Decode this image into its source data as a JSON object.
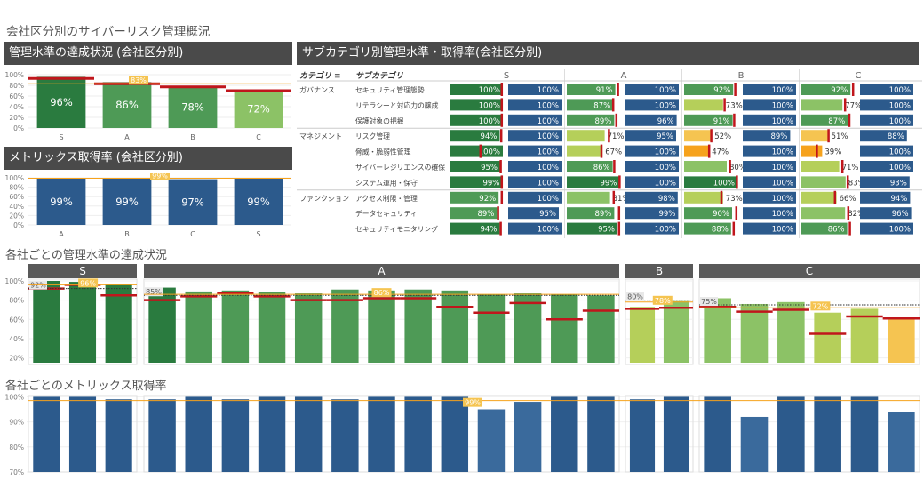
{
  "page_title": "会社区分別のサイバーリスク管理概況",
  "panels": {
    "achievement_title": "管理水準の達成状況 (会社区分別)",
    "metrics_title": "メトリックス取得率 (会社区分別)",
    "matrix_title": "サブカテゴリ別管理水準・取得率(会社区分別)",
    "company_achievement_title": "各社ごとの管理水準の達成状況",
    "company_metrics_title": "各社ごとのメトリックス取得率"
  },
  "colors": {
    "green_dark": "#2a7b3f",
    "green_mid": "#4e9a56",
    "green_light": "#8cc266",
    "yellow_green": "#b5cf5a",
    "blue": "#2c5a8c",
    "yellow": "#f5c451",
    "orange": "#f6a21c",
    "red": "#c0161c"
  },
  "chart_data": [
    {
      "id": "division_achievement",
      "type": "bar",
      "categories": [
        "S",
        "A",
        "B",
        "C"
      ],
      "values": [
        96,
        86,
        78,
        72
      ],
      "targets": [
        93,
        83,
        77,
        70
      ],
      "reference_line": 83,
      "reference_label": "83%",
      "ylim": [
        0,
        100
      ],
      "y_ticks": [
        "0%",
        "20%",
        "40%",
        "60%",
        "80%",
        "100%"
      ]
    },
    {
      "id": "division_metrics",
      "type": "bar",
      "categories": [
        "A",
        "B",
        "C",
        "S"
      ],
      "values": [
        99,
        99,
        97,
        99
      ],
      "reference_line": 99,
      "reference_label": "99%",
      "ylim": [
        0,
        100
      ],
      "y_ticks": [
        "0%",
        "20%",
        "40%",
        "60%",
        "80%",
        "100%"
      ]
    },
    {
      "id": "subcategory_matrix",
      "type": "table",
      "column_header_category": "カテゴリ",
      "column_header_subcategory": "サブカテゴリ",
      "sort_icon": "sort-icon",
      "divisions": [
        "S",
        "A",
        "B",
        "C"
      ],
      "groups": [
        {
          "category": "ガバナンス",
          "rows": [
            {
              "sub": "セキュリティ管理態勢",
              "ach": [
                100,
                91,
                92,
                92
              ],
              "tgt": [
                98,
                96,
                96,
                97
              ],
              "met": [
                100,
                100,
                100,
                100
              ]
            },
            {
              "sub": "リテラシーと対応力の醸成",
              "ach": [
                100,
                87,
                73,
                77
              ],
              "tgt": [
                98,
                87,
                76,
                82
              ],
              "met": [
                100,
                100,
                100,
                100
              ]
            },
            {
              "sub": "保護対象の把握",
              "ach": [
                100,
                89,
                91,
                87
              ],
              "tgt": [
                98,
                93,
                94,
                90
              ],
              "met": [
                100,
                96,
                100,
                100
              ]
            }
          ]
        },
        {
          "category": "マネジメント",
          "rows": [
            {
              "sub": "リスク管理",
              "ach": [
                94,
                71,
                52,
                51
              ],
              "tgt": [
                97,
                79,
                51,
                51
              ],
              "met": [
                100,
                95,
                89,
                88
              ]
            },
            {
              "sub": "脅威・脆弱性管理",
              "ach": [
                100,
                67,
                47,
                39
              ],
              "tgt": [
                58,
                65,
                47,
                29
              ],
              "met": [
                100,
                100,
                100,
                100
              ]
            },
            {
              "sub": "サイバーレジリエンスの確保",
              "ach": [
                95,
                86,
                80,
                71
              ],
              "tgt": [
                96,
                89,
                86,
                77
              ],
              "met": [
                100,
                100,
                100,
                100
              ]
            },
            {
              "sub": "システム運用・保守",
              "ach": [
                99,
                99,
                100,
                83
              ],
              "tgt": [
                98,
                99,
                99,
                87
              ],
              "met": [
                100,
                100,
                100,
                93
              ]
            }
          ]
        },
        {
          "category": "ファンクション",
          "rows": [
            {
              "sub": "アクセス制限・管理",
              "ach": [
                92,
                81,
                73,
                66
              ],
              "tgt": [
                98,
                88,
                70,
                63
              ],
              "met": [
                100,
                98,
                100,
                94
              ]
            },
            {
              "sub": "データセキュリティ",
              "ach": [
                89,
                89,
                90,
                82
              ],
              "tgt": [
                91,
                98,
                98,
                88
              ],
              "met": [
                95,
                99,
                100,
                96
              ]
            },
            {
              "sub": "セキュリティモニタリング",
              "ach": [
                94,
                95,
                88,
                86
              ],
              "tgt": [
                96,
                98,
                93,
                91
              ],
              "met": [
                100,
                100,
                100,
                100
              ]
            }
          ]
        }
      ]
    },
    {
      "id": "company_achievement",
      "type": "bar",
      "y_ticks": [
        "20%",
        "40%",
        "60%",
        "80%",
        "100%"
      ],
      "ylim": [
        15,
        100
      ],
      "groups": [
        {
          "name": "S",
          "values": [
            100,
            99,
            96
          ],
          "targets": [
            92,
            96,
            85
          ],
          "dotted": 92,
          "dotted_label": "92%",
          "avg": 96,
          "avg_label": "96%"
        },
        {
          "name": "A",
          "values": [
            93,
            89,
            90,
            88,
            87,
            91,
            90,
            91,
            90,
            86,
            87,
            86,
            85
          ],
          "targets": [
            80,
            84,
            87,
            84,
            80,
            80,
            82,
            82,
            73,
            67,
            77,
            60,
            69
          ],
          "dotted": 85,
          "dotted_label": "85%",
          "avg": 86,
          "avg_label": "86%"
        },
        {
          "name": "B",
          "values": [
            73,
            79
          ],
          "targets": [
            71,
            72
          ],
          "dotted": 80,
          "dotted_label": "80%",
          "avg": 78,
          "avg_label": "78%"
        },
        {
          "name": "C",
          "values": [
            82,
            76,
            78,
            67,
            71,
            62
          ],
          "targets": [
            73,
            68,
            70,
            45,
            63,
            61
          ],
          "dotted": 75,
          "dotted_label": "75%",
          "avg": 72,
          "avg_label": "72%"
        }
      ]
    },
    {
      "id": "company_metrics",
      "type": "bar",
      "y_ticks": [
        "70%",
        "80%",
        "90%",
        "100%"
      ],
      "ylim": [
        70,
        100.5
      ],
      "reference_line": 98.5,
      "reference_label": "99%",
      "groups": [
        {
          "name": "S",
          "values": [
            100,
            100,
            99
          ]
        },
        {
          "name": "A",
          "values": [
            99,
            100,
            99,
            100,
            100,
            99,
            100,
            100,
            100,
            95,
            98,
            100,
            100
          ]
        },
        {
          "name": "B",
          "values": [
            99,
            100
          ]
        },
        {
          "name": "C",
          "values": [
            100,
            92,
            100,
            100,
            100,
            94
          ]
        }
      ]
    }
  ]
}
